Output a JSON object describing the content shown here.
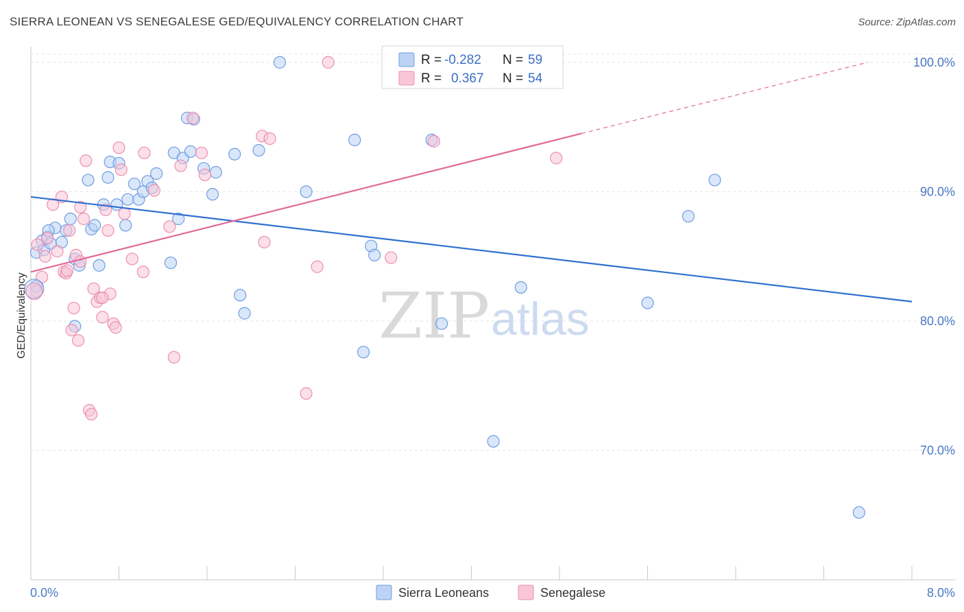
{
  "title": "SIERRA LEONEAN VS SENEGALESE GED/EQUIVALENCY CORRELATION CHART",
  "source": "Source: ZipAtlas.com",
  "watermark": {
    "zip": "ZIP",
    "atlas": "atlas"
  },
  "colors": {
    "blue": "#6f9de0",
    "blue_fill": "#bcd3f5",
    "pink": "#ec8fb0",
    "pink_fill": "#f8c6d7",
    "blue_line": "#2f6fcf",
    "pink_line": "#e06a96",
    "grid": "#e4e4e4",
    "axis_label": "#4a79c4"
  },
  "legend": {
    "rows": [
      {
        "r_label": "R =",
        "r_value": "-0.282",
        "n_label": "N =",
        "n_value": "59"
      },
      {
        "r_label": "R =",
        "r_value": "0.367",
        "n_label": "N =",
        "n_value": "54"
      }
    ]
  },
  "bottom_legend": [
    "Sierra Leoneans",
    "Senegalese"
  ],
  "chart_data": {
    "type": "scatter",
    "title": "SIERRA LEONEAN VS SENEGALESE GED/EQUIVALENCY CORRELATION CHART",
    "xlabel": "",
    "ylabel": "GED/Equivalency",
    "xlim": [
      0,
      8
    ],
    "ylim": [
      60,
      101
    ],
    "x_tick_labels": [
      "0.0%",
      "8.0%"
    ],
    "y_ticks": [
      70,
      80,
      90,
      100
    ],
    "y_tick_labels": [
      "70.0%",
      "80.0%",
      "90.0%",
      "100.0%"
    ],
    "grid": true,
    "legend_position": "top-center",
    "series": [
      {
        "name": "Sierra Leoneans",
        "r": -0.282,
        "n": 59,
        "trend": {
          "x": [
            0.0,
            8.0
          ],
          "y": [
            89.6,
            81.5
          ]
        },
        "points": [
          [
            0.05,
            85.3
          ],
          [
            0.05,
            82.7
          ],
          [
            0.1,
            86.2
          ],
          [
            0.12,
            85.5
          ],
          [
            0.15,
            86.5
          ],
          [
            0.18,
            86.0
          ],
          [
            0.22,
            87.2
          ],
          [
            0.28,
            86.1
          ],
          [
            0.32,
            87.0
          ],
          [
            0.36,
            87.9
          ],
          [
            0.4,
            84.8
          ],
          [
            0.44,
            84.3
          ],
          [
            0.52,
            90.9
          ],
          [
            0.55,
            87.1
          ],
          [
            0.58,
            87.4
          ],
          [
            0.62,
            84.3
          ],
          [
            0.66,
            89.0
          ],
          [
            0.7,
            91.1
          ],
          [
            0.72,
            92.3
          ],
          [
            0.78,
            89.0
          ],
          [
            0.8,
            92.2
          ],
          [
            0.86,
            87.4
          ],
          [
            0.88,
            89.4
          ],
          [
            0.94,
            90.6
          ],
          [
            0.98,
            89.4
          ],
          [
            1.02,
            90.0
          ],
          [
            1.06,
            90.8
          ],
          [
            1.1,
            90.3
          ],
          [
            1.14,
            91.4
          ],
          [
            1.27,
            84.5
          ],
          [
            1.3,
            93.0
          ],
          [
            1.34,
            87.9
          ],
          [
            1.38,
            92.6
          ],
          [
            1.42,
            95.7
          ],
          [
            1.45,
            93.1
          ],
          [
            1.48,
            95.6
          ],
          [
            1.57,
            91.8
          ],
          [
            1.65,
            89.8
          ],
          [
            1.68,
            91.5
          ],
          [
            1.85,
            92.9
          ],
          [
            1.9,
            82.0
          ],
          [
            2.07,
            93.2
          ],
          [
            1.94,
            80.6
          ],
          [
            2.26,
            100.0
          ],
          [
            2.5,
            90.0
          ],
          [
            2.94,
            94.0
          ],
          [
            3.02,
            77.6
          ],
          [
            3.09,
            85.8
          ],
          [
            3.12,
            85.1
          ],
          [
            3.64,
            94.0
          ],
          [
            3.73,
            79.8
          ],
          [
            4.2,
            70.7
          ],
          [
            4.45,
            82.6
          ],
          [
            5.6,
            81.4
          ],
          [
            5.97,
            88.1
          ],
          [
            6.21,
            90.9
          ],
          [
            7.52,
            65.2
          ],
          [
            0.4,
            79.6
          ],
          [
            0.16,
            87.0
          ]
        ]
      },
      {
        "name": "Senegalese",
        "r": 0.367,
        "n": 54,
        "trend": {
          "x": [
            0.0,
            5.0
          ],
          "y": [
            83.8,
            94.5
          ]
        },
        "trend_dashed": {
          "x": [
            5.0,
            7.6
          ],
          "y": [
            94.5,
            100.0
          ]
        },
        "points": [
          [
            0.05,
            82.3
          ],
          [
            0.06,
            85.9
          ],
          [
            0.1,
            83.4
          ],
          [
            0.13,
            85.0
          ],
          [
            0.15,
            86.4
          ],
          [
            0.2,
            89.0
          ],
          [
            0.24,
            85.4
          ],
          [
            0.28,
            89.6
          ],
          [
            0.3,
            83.8
          ],
          [
            0.32,
            83.7
          ],
          [
            0.35,
            87.0
          ],
          [
            0.37,
            79.3
          ],
          [
            0.39,
            81.0
          ],
          [
            0.41,
            85.1
          ],
          [
            0.43,
            78.5
          ],
          [
            0.45,
            88.8
          ],
          [
            0.48,
            87.9
          ],
          [
            0.5,
            92.4
          ],
          [
            0.53,
            73.1
          ],
          [
            0.55,
            72.8
          ],
          [
            0.57,
            82.5
          ],
          [
            0.6,
            81.5
          ],
          [
            0.63,
            81.8
          ],
          [
            0.65,
            80.3
          ],
          [
            0.68,
            88.6
          ],
          [
            0.7,
            87.0
          ],
          [
            0.72,
            82.1
          ],
          [
            0.75,
            79.8
          ],
          [
            0.77,
            79.5
          ],
          [
            0.8,
            93.4
          ],
          [
            0.82,
            91.7
          ],
          [
            0.85,
            88.3
          ],
          [
            0.92,
            84.8
          ],
          [
            1.02,
            83.8
          ],
          [
            1.03,
            93.0
          ],
          [
            1.12,
            90.1
          ],
          [
            1.26,
            87.3
          ],
          [
            1.3,
            77.2
          ],
          [
            1.36,
            92.0
          ],
          [
            1.47,
            95.7
          ],
          [
            1.55,
            93.0
          ],
          [
            1.58,
            91.3
          ],
          [
            2.1,
            94.3
          ],
          [
            2.12,
            86.1
          ],
          [
            2.17,
            94.1
          ],
          [
            2.5,
            74.4
          ],
          [
            2.6,
            84.2
          ],
          [
            2.7,
            100.0
          ],
          [
            3.27,
            84.9
          ],
          [
            3.66,
            93.9
          ],
          [
            4.77,
            92.6
          ],
          [
            0.33,
            83.9
          ],
          [
            0.45,
            84.6
          ],
          [
            0.65,
            81.8
          ]
        ]
      }
    ]
  }
}
